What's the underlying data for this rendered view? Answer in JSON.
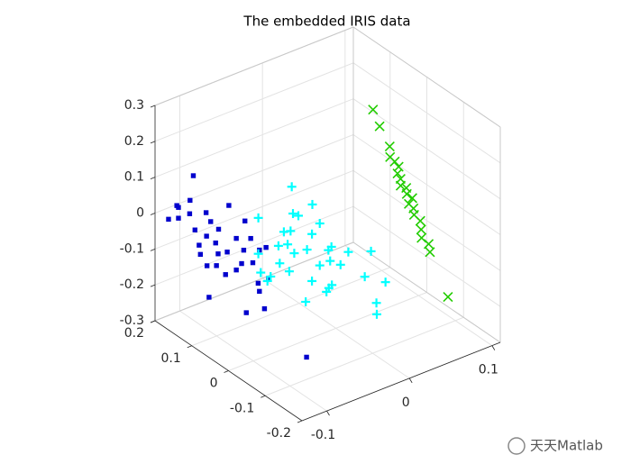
{
  "chart_data": {
    "type": "scatter3d",
    "title": "The embedded IRIS data",
    "xlim": [
      -0.13,
      0.11
    ],
    "ylim": [
      -0.2,
      0.2
    ],
    "zlim": [
      -0.3,
      0.3
    ],
    "xticks": [
      -0.1,
      0,
      0.1
    ],
    "yticks": [
      -0.2,
      -0.1,
      0,
      0.1,
      0.2
    ],
    "zticks": [
      -0.3,
      -0.2,
      -0.1,
      0,
      0.1,
      0.2,
      0.3
    ],
    "grid": true,
    "series": [
      {
        "color": "#0000cd",
        "marker": "square",
        "x": [
          -0.097,
          -0.115,
          -0.127,
          -0.101,
          -0.086,
          -0.115,
          -0.097,
          -0.076,
          -0.054,
          -0.039,
          -0.095,
          -0.081,
          -0.062,
          -0.045,
          -0.032,
          -0.09,
          -0.07,
          -0.056,
          -0.084,
          -0.069,
          -0.043,
          -0.017,
          -0.009,
          -0.025,
          -0.076,
          -0.045,
          -0.058,
          -0.023,
          -0.006,
          -0.017,
          -0.078,
          -0.064,
          -0.042,
          -0.117,
          -0.067,
          -0.036,
          -0.08
        ],
        "y": [
          0.17,
          0.17,
          0.17,
          0.17,
          0.16,
          0.17,
          0.18,
          0.17,
          0.17,
          0.16,
          0.17,
          0.17,
          0.18,
          0.17,
          0.16,
          0.17,
          0.17,
          0.17,
          0.18,
          0.17,
          0.16,
          0.17,
          0.17,
          0.17,
          0.18,
          0.17,
          0.17,
          0.16,
          0.17,
          0.17,
          0.17,
          0.1,
          0.1,
          0.17,
          0.17,
          0.17,
          -0.1
        ],
        "z": [
          0.095,
          0.023,
          0.001,
          0.03,
          -0.011,
          -0.007,
          -0.018,
          -0.052,
          -0.027,
          -0.077,
          -0.058,
          -0.088,
          -0.093,
          -0.127,
          -0.132,
          -0.105,
          -0.117,
          -0.155,
          -0.143,
          -0.181,
          -0.192,
          -0.185,
          -0.185,
          -0.213,
          -0.182,
          -0.215,
          -0.216,
          -0.265,
          -0.275,
          -0.3,
          -0.261,
          -0.268,
          -0.277,
          0.03,
          -0.15,
          -0.168,
          -0.238
        ]
      },
      {
        "color": "#00ffff",
        "marker": "plus",
        "x": [
          -0.049,
          -0.033,
          -0.085,
          -0.052,
          -0.041,
          -0.024,
          -0.063,
          -0.046,
          -0.029,
          -0.074,
          -0.054,
          -0.035,
          -0.018,
          -0.001,
          0.015,
          0.038,
          -0.085,
          -0.068,
          -0.046,
          -0.024,
          -0.007,
          0.01,
          0.026,
          -0.079,
          -0.052,
          -0.029,
          -0.013,
          0.004,
          0.06,
          -0.041,
          -0.007,
          0.049,
          -0.074,
          0.045,
          -0.091
        ],
        "y": [
          0.01,
          -0.01,
          0.02,
          0,
          0.01,
          -0.01,
          0,
          0.02,
          0,
          -0.01,
          0.01,
          0,
          -0.02,
          0.01,
          0,
          -0.01,
          0.02,
          0,
          0.01,
          -0.01,
          0,
          0.01,
          -0.02,
          0,
          0.01,
          0,
          -0.01,
          0.02,
          0,
          -0.01,
          0.01,
          0,
          0.02,
          -0.01,
          0
        ],
        "z": [
          0.132,
          0.082,
          0.071,
          0.067,
          0.044,
          0.021,
          0.026,
          -0.001,
          -0.011,
          0.004,
          -0.024,
          -0.049,
          -0.052,
          -0.079,
          -0.101,
          -0.113,
          -0.029,
          -0.057,
          -0.056,
          -0.096,
          -0.106,
          -0.139,
          -0.166,
          -0.084,
          -0.101,
          -0.142,
          -0.169,
          -0.197,
          -0.226,
          -0.182,
          -0.199,
          -0.274,
          -0.115,
          -0.295,
          -0.062
        ]
      },
      {
        "color": "#22cc00",
        "marker": "cross",
        "x": [
          0.1,
          0.1,
          0.102,
          0.098,
          0.101,
          0.103,
          0.099,
          0.1,
          0.097,
          0.102,
          0.1,
          0.104,
          0.098,
          0.101,
          0.099,
          0.103,
          0.1,
          0.097,
          0.102,
          0.1,
          0.1
        ],
        "y": [
          0.124,
          0.106,
          0.083,
          0.073,
          0.067,
          0.061,
          0.055,
          0.049,
          0.042,
          0.038,
          0.032,
          0.026,
          0.022,
          0.016,
          0.01,
          0.002,
          -0.007,
          -0.015,
          -0.023,
          -0.031,
          -0.08
        ],
        "z": [
          0.132,
          0.098,
          0.056,
          0.037,
          0.026,
          0.014,
          0.003,
          -0.009,
          -0.02,
          -0.028,
          -0.039,
          -0.05,
          -0.058,
          -0.069,
          -0.081,
          -0.096,
          -0.111,
          -0.126,
          -0.142,
          -0.157,
          -0.248
        ]
      }
    ],
    "watermark": "天天Matlab"
  }
}
